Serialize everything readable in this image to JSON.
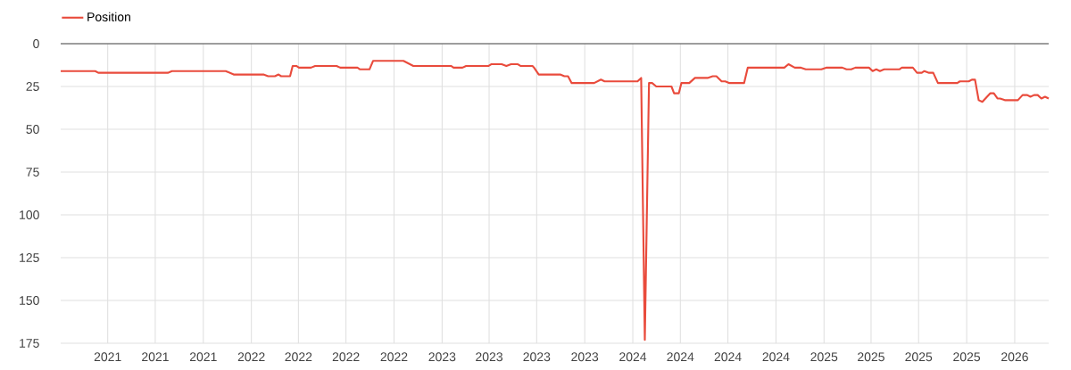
{
  "chart_data": {
    "type": "line",
    "legend": "top left",
    "grid": true,
    "xlim": [
      "2021-01-01",
      "2026-03-07"
    ],
    "ylim": [
      175,
      0
    ],
    "yticks": [
      0,
      25,
      50,
      75,
      100,
      125,
      150,
      175
    ],
    "xticks": [
      {
        "value": "2021-04-01",
        "label": "2021"
      },
      {
        "value": "2021-07-01",
        "label": "2021"
      },
      {
        "value": "2021-10-01",
        "label": "2021"
      },
      {
        "value": "2022-01-01",
        "label": "2022"
      },
      {
        "value": "2022-04-01",
        "label": "2022"
      },
      {
        "value": "2022-07-01",
        "label": "2022"
      },
      {
        "value": "2022-10-01",
        "label": "2022"
      },
      {
        "value": "2023-01-01",
        "label": "2023"
      },
      {
        "value": "2023-04-01",
        "label": "2023"
      },
      {
        "value": "2023-07-01",
        "label": "2023"
      },
      {
        "value": "2023-10-01",
        "label": "2023"
      },
      {
        "value": "2024-01-01",
        "label": "2024"
      },
      {
        "value": "2024-04-01",
        "label": "2024"
      },
      {
        "value": "2024-07-01",
        "label": "2024"
      },
      {
        "value": "2024-10-01",
        "label": "2024"
      },
      {
        "value": "2025-01-01",
        "label": "2025"
      },
      {
        "value": "2025-04-01",
        "label": "2025"
      },
      {
        "value": "2025-07-01",
        "label": "2025"
      },
      {
        "value": "2025-10-01",
        "label": "2025"
      },
      {
        "value": "2026-01-01",
        "label": "2026"
      }
    ],
    "series": [
      {
        "name": "Position",
        "color": "#e94b3c",
        "x": [
          "2021-01-01",
          "2021-03-08",
          "2021-03-14",
          "2021-07-25",
          "2021-08-02",
          "2021-11-13",
          "2021-11-28",
          "2022-01-24",
          "2022-02-02",
          "2022-02-15",
          "2022-02-22",
          "2022-02-27",
          "2022-03-16",
          "2022-03-21",
          "2022-03-28",
          "2022-04-02",
          "2022-04-25",
          "2022-05-03",
          "2022-06-13",
          "2022-06-20",
          "2022-07-23",
          "2022-07-28",
          "2022-08-15",
          "2022-08-22",
          "2022-10-19",
          "2022-11-07",
          "2023-01-18",
          "2023-01-23",
          "2023-02-09",
          "2023-02-16",
          "2023-03-31",
          "2023-04-05",
          "2023-04-25",
          "2023-05-04",
          "2023-05-13",
          "2023-05-26",
          "2023-05-31",
          "2023-06-23",
          "2023-06-26",
          "2023-07-05",
          "2023-08-15",
          "2023-08-23",
          "2023-08-30",
          "2023-09-06",
          "2023-10-19",
          "2023-11-01",
          "2023-11-08",
          "2024-01-10",
          "2024-01-17",
          "2024-01-24",
          "2024-02-01",
          "2024-02-07",
          "2024-02-15",
          "2024-03-15",
          "2024-03-20",
          "2024-03-29",
          "2024-04-03",
          "2024-04-18",
          "2024-04-29",
          "2024-05-23",
          "2024-06-02",
          "2024-06-09",
          "2024-06-19",
          "2024-06-26",
          "2024-07-04",
          "2024-08-01",
          "2024-08-08",
          "2024-10-17",
          "2024-10-25",
          "2024-11-06",
          "2024-11-18",
          "2024-11-27",
          "2024-12-27",
          "2025-01-05",
          "2025-02-05",
          "2025-02-13",
          "2025-02-22",
          "2025-03-02",
          "2025-03-28",
          "2025-04-04",
          "2025-04-11",
          "2025-04-18",
          "2025-04-26",
          "2025-05-25",
          "2025-05-30",
          "2025-06-20",
          "2025-06-28",
          "2025-07-07",
          "2025-07-12",
          "2025-07-21",
          "2025-07-29",
          "2025-08-07",
          "2025-09-13",
          "2025-09-18",
          "2025-10-05",
          "2025-10-11",
          "2025-10-17",
          "2025-10-24",
          "2025-10-31",
          "2025-11-09",
          "2025-11-15",
          "2025-11-22",
          "2025-11-29",
          "2025-12-04",
          "2025-12-13",
          "2026-01-07",
          "2026-01-16",
          "2026-01-25",
          "2026-01-31",
          "2026-02-07",
          "2026-02-14",
          "2026-02-21",
          "2026-02-28",
          "2026-03-07"
        ],
        "values": [
          16,
          16,
          17,
          17,
          16,
          16,
          18,
          18,
          19,
          19,
          18,
          19,
          19,
          13,
          13,
          14,
          14,
          13,
          13,
          14,
          14,
          15,
          15,
          10,
          10,
          13,
          13,
          14,
          14,
          13,
          13,
          12,
          12,
          13,
          12,
          12,
          13,
          13,
          14,
          18,
          18,
          19,
          19,
          23,
          23,
          21,
          22,
          22,
          20,
          173,
          23,
          23,
          25,
          25,
          29,
          29,
          23,
          23,
          20,
          20,
          19,
          19,
          22,
          22,
          23,
          23,
          14,
          14,
          12,
          14,
          14,
          15,
          15,
          14,
          14,
          15,
          15,
          14,
          14,
          16,
          15,
          16,
          15,
          15,
          14,
          14,
          17,
          17,
          16,
          17,
          17,
          23,
          23,
          22,
          22,
          21,
          21,
          33,
          34,
          31,
          29,
          29,
          32,
          32,
          33,
          33,
          30,
          30,
          31,
          30,
          30,
          32,
          31,
          32
        ]
      }
    ]
  }
}
